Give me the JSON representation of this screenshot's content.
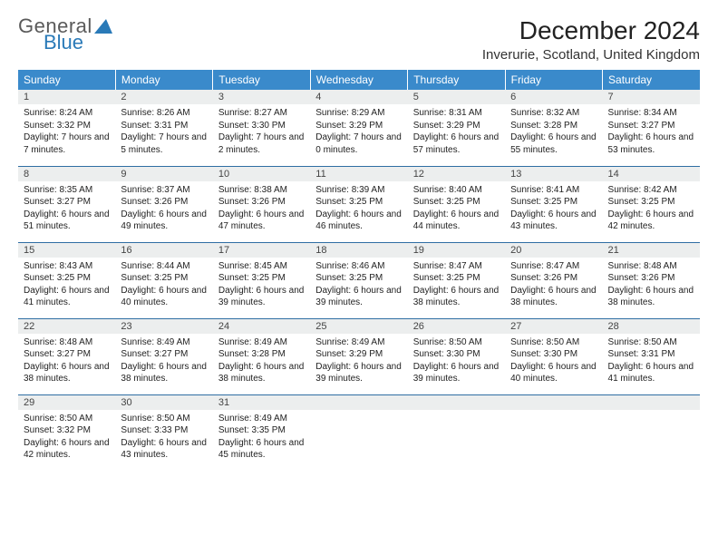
{
  "logo": {
    "line1": "General",
    "line2": "Blue",
    "triangle_color": "#2a7ab8"
  },
  "title": "December 2024",
  "location": "Inverurie, Scotland, United Kingdom",
  "colors": {
    "header_bg": "#3a8acb",
    "header_text": "#ffffff",
    "daynum_bg": "#eceeee",
    "row_border": "#2f6ea3",
    "background": "#ffffff"
  },
  "weekdays": [
    "Sunday",
    "Monday",
    "Tuesday",
    "Wednesday",
    "Thursday",
    "Friday",
    "Saturday"
  ],
  "weeks": [
    [
      {
        "n": "1",
        "sunrise": "Sunrise: 8:24 AM",
        "sunset": "Sunset: 3:32 PM",
        "day": "Daylight: 7 hours and 7 minutes."
      },
      {
        "n": "2",
        "sunrise": "Sunrise: 8:26 AM",
        "sunset": "Sunset: 3:31 PM",
        "day": "Daylight: 7 hours and 5 minutes."
      },
      {
        "n": "3",
        "sunrise": "Sunrise: 8:27 AM",
        "sunset": "Sunset: 3:30 PM",
        "day": "Daylight: 7 hours and 2 minutes."
      },
      {
        "n": "4",
        "sunrise": "Sunrise: 8:29 AM",
        "sunset": "Sunset: 3:29 PM",
        "day": "Daylight: 7 hours and 0 minutes."
      },
      {
        "n": "5",
        "sunrise": "Sunrise: 8:31 AM",
        "sunset": "Sunset: 3:29 PM",
        "day": "Daylight: 6 hours and 57 minutes."
      },
      {
        "n": "6",
        "sunrise": "Sunrise: 8:32 AM",
        "sunset": "Sunset: 3:28 PM",
        "day": "Daylight: 6 hours and 55 minutes."
      },
      {
        "n": "7",
        "sunrise": "Sunrise: 8:34 AM",
        "sunset": "Sunset: 3:27 PM",
        "day": "Daylight: 6 hours and 53 minutes."
      }
    ],
    [
      {
        "n": "8",
        "sunrise": "Sunrise: 8:35 AM",
        "sunset": "Sunset: 3:27 PM",
        "day": "Daylight: 6 hours and 51 minutes."
      },
      {
        "n": "9",
        "sunrise": "Sunrise: 8:37 AM",
        "sunset": "Sunset: 3:26 PM",
        "day": "Daylight: 6 hours and 49 minutes."
      },
      {
        "n": "10",
        "sunrise": "Sunrise: 8:38 AM",
        "sunset": "Sunset: 3:26 PM",
        "day": "Daylight: 6 hours and 47 minutes."
      },
      {
        "n": "11",
        "sunrise": "Sunrise: 8:39 AM",
        "sunset": "Sunset: 3:25 PM",
        "day": "Daylight: 6 hours and 46 minutes."
      },
      {
        "n": "12",
        "sunrise": "Sunrise: 8:40 AM",
        "sunset": "Sunset: 3:25 PM",
        "day": "Daylight: 6 hours and 44 minutes."
      },
      {
        "n": "13",
        "sunrise": "Sunrise: 8:41 AM",
        "sunset": "Sunset: 3:25 PM",
        "day": "Daylight: 6 hours and 43 minutes."
      },
      {
        "n": "14",
        "sunrise": "Sunrise: 8:42 AM",
        "sunset": "Sunset: 3:25 PM",
        "day": "Daylight: 6 hours and 42 minutes."
      }
    ],
    [
      {
        "n": "15",
        "sunrise": "Sunrise: 8:43 AM",
        "sunset": "Sunset: 3:25 PM",
        "day": "Daylight: 6 hours and 41 minutes."
      },
      {
        "n": "16",
        "sunrise": "Sunrise: 8:44 AM",
        "sunset": "Sunset: 3:25 PM",
        "day": "Daylight: 6 hours and 40 minutes."
      },
      {
        "n": "17",
        "sunrise": "Sunrise: 8:45 AM",
        "sunset": "Sunset: 3:25 PM",
        "day": "Daylight: 6 hours and 39 minutes."
      },
      {
        "n": "18",
        "sunrise": "Sunrise: 8:46 AM",
        "sunset": "Sunset: 3:25 PM",
        "day": "Daylight: 6 hours and 39 minutes."
      },
      {
        "n": "19",
        "sunrise": "Sunrise: 8:47 AM",
        "sunset": "Sunset: 3:25 PM",
        "day": "Daylight: 6 hours and 38 minutes."
      },
      {
        "n": "20",
        "sunrise": "Sunrise: 8:47 AM",
        "sunset": "Sunset: 3:26 PM",
        "day": "Daylight: 6 hours and 38 minutes."
      },
      {
        "n": "21",
        "sunrise": "Sunrise: 8:48 AM",
        "sunset": "Sunset: 3:26 PM",
        "day": "Daylight: 6 hours and 38 minutes."
      }
    ],
    [
      {
        "n": "22",
        "sunrise": "Sunrise: 8:48 AM",
        "sunset": "Sunset: 3:27 PM",
        "day": "Daylight: 6 hours and 38 minutes."
      },
      {
        "n": "23",
        "sunrise": "Sunrise: 8:49 AM",
        "sunset": "Sunset: 3:27 PM",
        "day": "Daylight: 6 hours and 38 minutes."
      },
      {
        "n": "24",
        "sunrise": "Sunrise: 8:49 AM",
        "sunset": "Sunset: 3:28 PM",
        "day": "Daylight: 6 hours and 38 minutes."
      },
      {
        "n": "25",
        "sunrise": "Sunrise: 8:49 AM",
        "sunset": "Sunset: 3:29 PM",
        "day": "Daylight: 6 hours and 39 minutes."
      },
      {
        "n": "26",
        "sunrise": "Sunrise: 8:50 AM",
        "sunset": "Sunset: 3:30 PM",
        "day": "Daylight: 6 hours and 39 minutes."
      },
      {
        "n": "27",
        "sunrise": "Sunrise: 8:50 AM",
        "sunset": "Sunset: 3:30 PM",
        "day": "Daylight: 6 hours and 40 minutes."
      },
      {
        "n": "28",
        "sunrise": "Sunrise: 8:50 AM",
        "sunset": "Sunset: 3:31 PM",
        "day": "Daylight: 6 hours and 41 minutes."
      }
    ],
    [
      {
        "n": "29",
        "sunrise": "Sunrise: 8:50 AM",
        "sunset": "Sunset: 3:32 PM",
        "day": "Daylight: 6 hours and 42 minutes."
      },
      {
        "n": "30",
        "sunrise": "Sunrise: 8:50 AM",
        "sunset": "Sunset: 3:33 PM",
        "day": "Daylight: 6 hours and 43 minutes."
      },
      {
        "n": "31",
        "sunrise": "Sunrise: 8:49 AM",
        "sunset": "Sunset: 3:35 PM",
        "day": "Daylight: 6 hours and 45 minutes."
      },
      {
        "n": "",
        "sunrise": "",
        "sunset": "",
        "day": ""
      },
      {
        "n": "",
        "sunrise": "",
        "sunset": "",
        "day": ""
      },
      {
        "n": "",
        "sunrise": "",
        "sunset": "",
        "day": ""
      },
      {
        "n": "",
        "sunrise": "",
        "sunset": "",
        "day": ""
      }
    ]
  ]
}
